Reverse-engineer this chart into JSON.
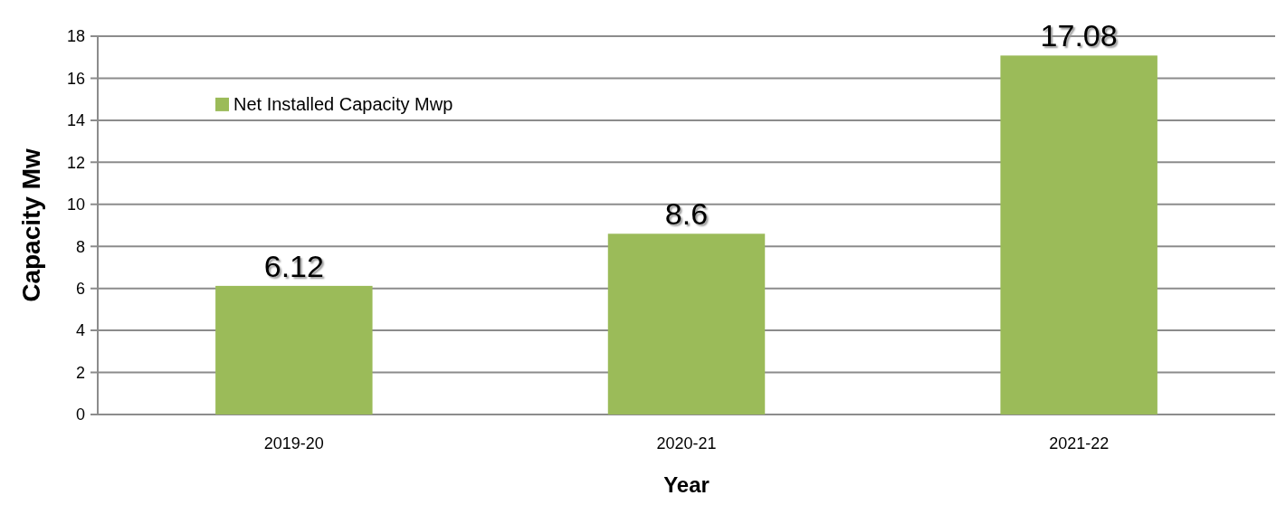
{
  "chart_data": {
    "type": "bar",
    "xlabel": "Year",
    "ylabel": "Capacity Mw",
    "categories": [
      "2019-20",
      "2020-21",
      "2021-22"
    ],
    "series": [
      {
        "name": "Net Installed Capacity Mwp",
        "color": "#9bbb59",
        "values": [
          6.12,
          8.6,
          17.08
        ]
      }
    ],
    "ylim": [
      0,
      18
    ],
    "yticks": [
      0,
      2,
      4,
      6,
      8,
      10,
      12,
      14,
      16,
      18
    ],
    "grid": "y",
    "legend": "top left",
    "data_labels": true
  }
}
